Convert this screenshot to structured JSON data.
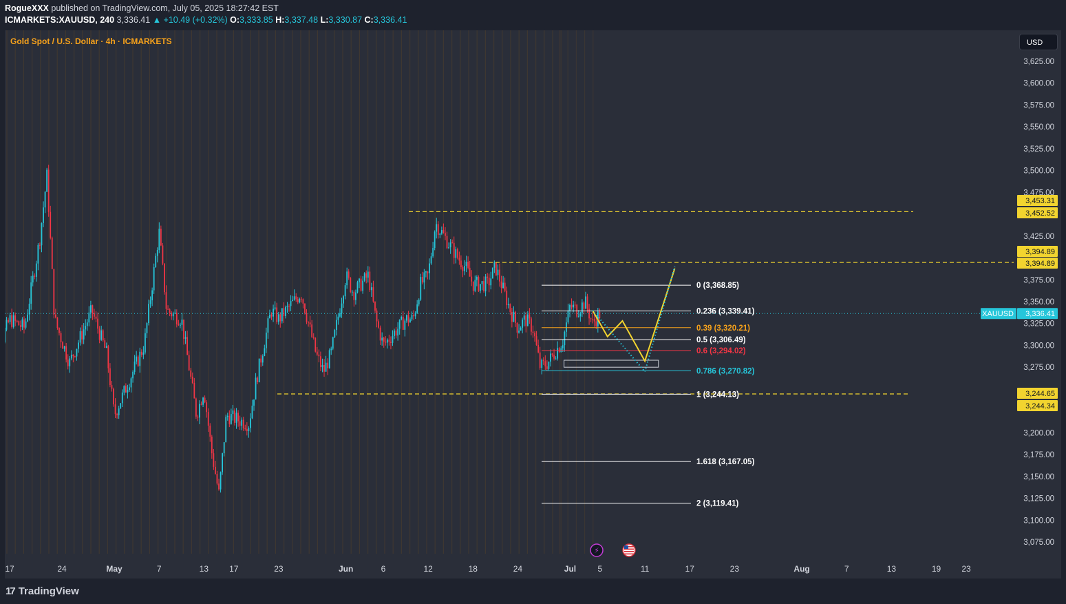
{
  "header": {
    "publisher": "RogueXXX",
    "published_text": "published on TradingView.com, July 05, 2025 18:27:42 EST",
    "symbol_line": "ICMARKETS:XAUUSD, 240",
    "last": "3,336.41",
    "change": "▲ +10.49 (+0.32%)",
    "o_label": "O:",
    "o": "3,333.85",
    "h_label": "H:",
    "h": "3,337.48",
    "l_label": "L:",
    "l": "3,330.87",
    "c_label": "C:",
    "c": "3,336.41"
  },
  "chart_title": "Gold Spot / U.S. Dollar · 4h · ICMARKETS",
  "currency": "USD",
  "footer": {
    "brand": "TradingView",
    "logo_text": "17"
  },
  "colors": {
    "up": "#26c6da",
    "down": "#f23645",
    "accent": "#f7a21b",
    "level_line": "#f2d42f",
    "background": "#2a2e39"
  },
  "icons": {
    "event_1": "lightning-icon",
    "event_2": "us-flag-icon"
  },
  "chart_data": {
    "type": "candlestick",
    "symbol": "XAUUSD",
    "timeframe": "4h",
    "price_axis": {
      "ticks": [
        3625,
        3600,
        3575,
        3550,
        3525,
        3500,
        3475,
        3425,
        3375,
        3350,
        3325,
        3300,
        3275,
        3200,
        3175,
        3150,
        3125,
        3100,
        3075
      ],
      "tick_labels": [
        "3,625.00",
        "3,600.00",
        "3,575.00",
        "3,550.00",
        "3,525.00",
        "3,500.00",
        "3,475.00",
        "3,425.00",
        "3,375.00",
        "3,350.00",
        "3,325.00",
        "3,300.00",
        "3,275.00",
        "3,200.00",
        "3,175.00",
        "3,150.00",
        "3,125.00",
        "3,100.00",
        "3,075.00"
      ]
    },
    "time_axis": {
      "labels": [
        "17",
        "24",
        "May",
        "7",
        "13",
        "17",
        "23",
        "Jun",
        "6",
        "12",
        "18",
        "24",
        "Jul",
        "5",
        "11",
        "17",
        "23",
        "Aug",
        "7",
        "13",
        "19",
        "23"
      ],
      "dates": [
        "2025-04-17",
        "2025-04-24",
        "2025-05-01",
        "2025-05-07",
        "2025-05-13",
        "2025-05-17",
        "2025-05-23",
        "2025-06-01",
        "2025-06-06",
        "2025-06-12",
        "2025-06-18",
        "2025-06-24",
        "2025-07-01",
        "2025-07-05",
        "2025-07-11",
        "2025-07-17",
        "2025-07-23",
        "2025-08-01",
        "2025-08-07",
        "2025-08-13",
        "2025-08-19",
        "2025-08-23"
      ],
      "bold": [
        "May",
        "Jun",
        "Jul",
        "Aug"
      ]
    },
    "price_path": [
      [
        "2025-04-14",
        3260
      ],
      [
        "2025-04-17",
        3330
      ],
      [
        "2025-04-19",
        3320
      ],
      [
        "2025-04-21",
        3420
      ],
      [
        "2025-04-22",
        3495
      ],
      [
        "2025-04-23",
        3330
      ],
      [
        "2025-04-25",
        3280
      ],
      [
        "2025-04-28",
        3340
      ],
      [
        "2025-04-30",
        3290
      ],
      [
        "2025-05-01",
        3220
      ],
      [
        "2025-05-02",
        3240
      ],
      [
        "2025-05-05",
        3300
      ],
      [
        "2025-05-07",
        3430
      ],
      [
        "2025-05-08",
        3340
      ],
      [
        "2025-05-10",
        3330
      ],
      [
        "2025-05-12",
        3220
      ],
      [
        "2025-05-13",
        3250
      ],
      [
        "2025-05-14",
        3180
      ],
      [
        "2025-05-15",
        3130
      ],
      [
        "2025-05-16",
        3220
      ],
      [
        "2025-05-19",
        3210
      ],
      [
        "2025-05-20",
        3260
      ],
      [
        "2025-05-22",
        3340
      ],
      [
        "2025-05-23",
        3330
      ],
      [
        "2025-05-26",
        3360
      ],
      [
        "2025-05-28",
        3290
      ],
      [
        "2025-05-29",
        3270
      ],
      [
        "2025-05-30",
        3290
      ],
      [
        "2025-06-01",
        3380
      ],
      [
        "2025-06-02",
        3360
      ],
      [
        "2025-06-04",
        3380
      ],
      [
        "2025-06-05",
        3330
      ],
      [
        "2025-06-06",
        3300
      ],
      [
        "2025-06-08",
        3320
      ],
      [
        "2025-06-09",
        3330
      ],
      [
        "2025-06-10",
        3330
      ],
      [
        "2025-06-11",
        3370
      ],
      [
        "2025-06-12",
        3380
      ],
      [
        "2025-06-13",
        3440
      ],
      [
        "2025-06-16",
        3400
      ],
      [
        "2025-06-17",
        3390
      ],
      [
        "2025-06-18",
        3370
      ],
      [
        "2025-06-20",
        3370
      ],
      [
        "2025-06-21",
        3390
      ],
      [
        "2025-06-23",
        3340
      ],
      [
        "2025-06-24",
        3320
      ],
      [
        "2025-06-25",
        3330
      ],
      [
        "2025-06-26",
        3320
      ],
      [
        "2025-06-27",
        3275
      ],
      [
        "2025-06-28",
        3280
      ],
      [
        "2025-06-30",
        3305
      ],
      [
        "2025-07-01",
        3345
      ],
      [
        "2025-07-02",
        3340
      ],
      [
        "2025-07-03",
        3350
      ],
      [
        "2025-07-04",
        3325
      ],
      [
        "2025-07-05",
        3336.41
      ]
    ],
    "fib_levels": [
      {
        "ratio": "0",
        "label": "0 (3,368.85)",
        "price": 3368.85,
        "color": "#ffffff"
      },
      {
        "ratio": "0.236",
        "label": "0.236 (3,339.41)",
        "price": 3339.41,
        "color": "#ffffff"
      },
      {
        "ratio": "0.39",
        "label": "0.39 (3,320.21)",
        "price": 3320.21,
        "color": "#f7a21b"
      },
      {
        "ratio": "0.5",
        "label": "0.5 (3,306.49)",
        "price": 3306.49,
        "color": "#ffffff"
      },
      {
        "ratio": "0.6",
        "label": "0.6 (3,294.02)",
        "price": 3294.02,
        "color": "#f23645"
      },
      {
        "ratio": "0.786",
        "label": "0.786 (3,270.82)",
        "price": 3270.82,
        "color": "#26c6da"
      },
      {
        "ratio": "1",
        "label": "1 (3,244.13)",
        "price": 3244.13,
        "color": "#ffffff"
      },
      {
        "ratio": "1.618",
        "label": "1.618 (3,167.05)",
        "price": 3167.05,
        "color": "#ffffff"
      },
      {
        "ratio": "2",
        "label": "2 (3,119.41)",
        "price": 3119.41,
        "color": "#ffffff"
      }
    ],
    "horizontal_levels": [
      {
        "price": 3453.31,
        "label": "3,453.31"
      },
      {
        "price": 3452.52,
        "label": "3,452.52"
      },
      {
        "price": 3394.89,
        "label": "3,394.89"
      },
      {
        "price": 3394.89,
        "label": "3,394.89"
      },
      {
        "price": 3244.65,
        "label": "3,244.65"
      },
      {
        "price": 3244.34,
        "label": "3,244.34"
      }
    ],
    "last_price": {
      "symbol": "XAUUSD",
      "price": 3336.41,
      "label": "3,336.41"
    },
    "projection_solid": [
      [
        "2025-07-04",
        3340
      ],
      [
        "2025-07-06",
        3310
      ],
      [
        "2025-07-08",
        3328
      ],
      [
        "2025-07-11",
        3282
      ],
      [
        "2025-07-15",
        3388
      ]
    ],
    "projection_dotted": [
      [
        "2025-07-04",
        3340
      ],
      [
        "2025-07-11",
        3270
      ],
      [
        "2025-07-15",
        3390
      ]
    ],
    "zone": {
      "from": "2025-06-30",
      "to": "2025-07-13",
      "high": 3283,
      "low": 3275
    }
  }
}
